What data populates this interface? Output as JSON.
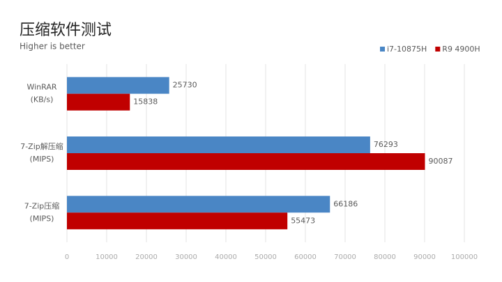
{
  "chart_data": {
    "type": "barh",
    "title": "压缩软件测试",
    "subtitle": "Higher is better",
    "categories": [
      [
        "WinRAR",
        "(KB/s)"
      ],
      [
        "7-Zip解压缩",
        "(MIPS)"
      ],
      [
        "7-Zip压缩",
        "(MIPS)"
      ]
    ],
    "series": [
      {
        "name": "i7-10875H",
        "color": "#4a86c5",
        "values": [
          25730,
          76293,
          66186
        ]
      },
      {
        "name": "R9 4900H",
        "color": "#c00000",
        "values": [
          15838,
          90087,
          55473
        ]
      }
    ],
    "xlim": [
      0,
      100000
    ],
    "xticks": [
      0,
      10000,
      20000,
      30000,
      40000,
      50000,
      60000,
      70000,
      80000,
      90000,
      100000
    ],
    "grid": true,
    "legend": "top-right"
  }
}
